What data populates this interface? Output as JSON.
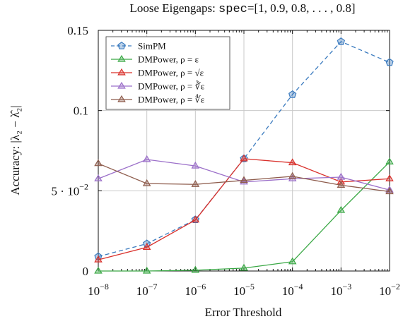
{
  "chart_data": {
    "type": "line",
    "title_prefix": "Loose Eigengaps: ",
    "title_mono": "spec",
    "title_rest": "=[1, 0.9, 0.8, . . . , 0.8]",
    "xlabel": "Error Threshold",
    "ylabel": "Accuracy: |λ₂ − λ̂₂|",
    "x_scale": "log",
    "xlim": [
      1e-08,
      0.01
    ],
    "ylim": [
      0,
      0.15
    ],
    "x_ticks": [
      {
        "value": 1e-08,
        "base": "10",
        "exp": "−8"
      },
      {
        "value": 1e-07,
        "base": "10",
        "exp": "−7"
      },
      {
        "value": 1e-06,
        "base": "10",
        "exp": "−6"
      },
      {
        "value": 1e-05,
        "base": "10",
        "exp": "−5"
      },
      {
        "value": 0.0001,
        "base": "10",
        "exp": "−4"
      },
      {
        "value": 0.001,
        "base": "10",
        "exp": "−3"
      },
      {
        "value": 0.01,
        "base": "10",
        "exp": "−2"
      }
    ],
    "y_ticks": [
      {
        "value": 0,
        "label": "0"
      },
      {
        "value": 0.05,
        "label": "5 · 10",
        "exp": "−2"
      },
      {
        "value": 0.1,
        "label": "0.1"
      },
      {
        "value": 0.15,
        "label": "0.15"
      }
    ],
    "grid": true,
    "legend_position": "top-left",
    "x": [
      1e-08,
      1e-07,
      1e-06,
      1e-05,
      0.0001,
      0.001,
      0.01
    ],
    "series": [
      {
        "name": "SimPM",
        "color": "#3b7bbf",
        "dashed": true,
        "marker": "pentagon",
        "values": [
          0.009,
          0.017,
          0.032,
          0.07,
          0.11,
          0.143,
          0.13
        ]
      },
      {
        "name": "DMPower, ρ = ε",
        "color": "#3aa845",
        "dashed": false,
        "marker": "triangle",
        "values": [
          0.0,
          0.0,
          0.0005,
          0.0018,
          0.0058,
          0.0378,
          0.068
        ]
      },
      {
        "name": "DMPower, ρ = √ε",
        "color": "#d9302b",
        "dashed": false,
        "marker": "triangle",
        "values": [
          0.007,
          0.0148,
          0.0318,
          0.07,
          0.0675,
          0.0555,
          0.0575
        ]
      },
      {
        "name": "DMPower, ρ = ∛ε",
        "color": "#9b6fc9",
        "dashed": false,
        "marker": "triangle",
        "values": [
          0.0575,
          0.0695,
          0.0655,
          0.0555,
          0.0575,
          0.0585,
          0.0505
        ]
      },
      {
        "name": "DMPower, ρ = ∜ε",
        "color": "#8e5c4c",
        "dashed": false,
        "marker": "triangle",
        "values": [
          0.067,
          0.0545,
          0.054,
          0.0565,
          0.059,
          0.0535,
          0.0495
        ]
      }
    ]
  }
}
